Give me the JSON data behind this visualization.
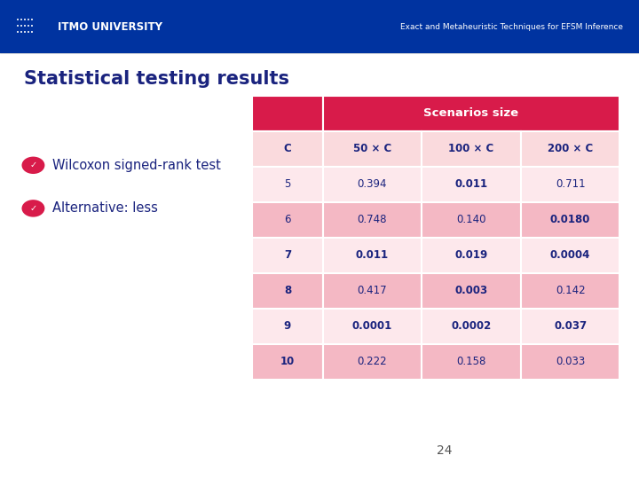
{
  "title": "Statistical testing results",
  "header_title": "Exact and Metaheuristic Techniques for EFSM Inference",
  "bullets": [
    "Wilcoxon signed-rank test",
    "Alternative: less"
  ],
  "table_header_label": "Scenarios size",
  "col_headers": [
    "C",
    "50 × C",
    "100 × C",
    "200 × C"
  ],
  "rows": [
    [
      "5",
      "0.394",
      "0.011",
      "0.711"
    ],
    [
      "6",
      "0.748",
      "0.140",
      "0.0180"
    ],
    [
      "7",
      "0.011",
      "0.019",
      "0.0004"
    ],
    [
      "8",
      "0.417",
      "0.003",
      "0.142"
    ],
    [
      "9",
      "0.0001",
      "0.0002",
      "0.037"
    ],
    [
      "10",
      "0.222",
      "0.158",
      "0.033"
    ]
  ],
  "bold_cells": [
    [
      false,
      false,
      true,
      false
    ],
    [
      false,
      false,
      false,
      true
    ],
    [
      false,
      true,
      true,
      true
    ],
    [
      false,
      false,
      true,
      false
    ],
    [
      false,
      true,
      true,
      true
    ],
    [
      false,
      false,
      false,
      false
    ]
  ],
  "row_label_bold": [
    false,
    false,
    true,
    true,
    true,
    true
  ],
  "header_bg": "#0033A0",
  "header_text_color": "#FFFFFF",
  "slide_bg": "#FFFFFF",
  "table_header_bg": "#D81B4A",
  "table_header_text": "#FFFFFF",
  "col_header_bg": "#FADADD",
  "col_header_text": "#1a237e",
  "row_dark_bg": "#F4B8C4",
  "row_light_bg": "#FDE8EC",
  "row_text_color": "#1a237e",
  "title_color": "#1a237e",
  "bullet_color": "#1a237e",
  "bullet_icon_bg": "#D81B4A",
  "page_number": "24",
  "page_num_color": "#555555"
}
